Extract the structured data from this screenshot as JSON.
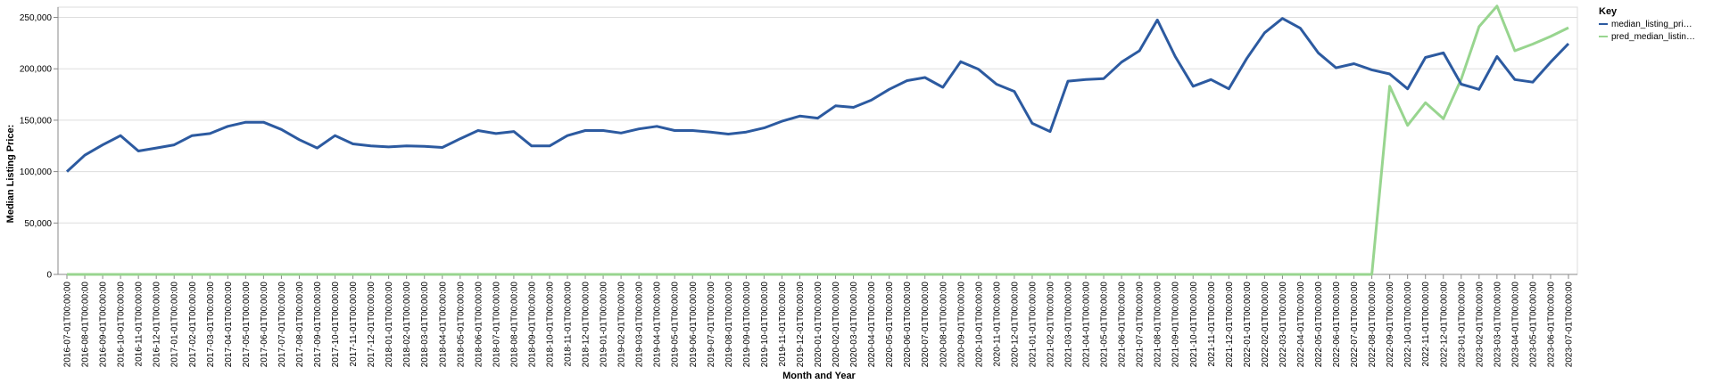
{
  "chart_data": {
    "type": "line",
    "xlabel": "Month and Year",
    "ylabel": "Median Listing Price:",
    "ylim": [
      0,
      260000
    ],
    "y_ticks": [
      0,
      50000,
      100000,
      150000,
      200000,
      250000
    ],
    "y_tick_labels": [
      "0",
      "50,000",
      "100,000",
      "150,000",
      "200,000",
      "250,000"
    ],
    "grid": true,
    "legend": {
      "title": "Key",
      "placement": "top-right",
      "entries": [
        "median_listing_pri…",
        "pred_median_listin…"
      ]
    },
    "categories": [
      "2016-07-01T00:00:00",
      "2016-08-01T00:00:00",
      "2016-09-01T00:00:00",
      "2016-10-01T00:00:00",
      "2016-11-01T00:00:00",
      "2016-12-01T00:00:00",
      "2017-01-01T00:00:00",
      "2017-02-01T00:00:00",
      "2017-03-01T00:00:00",
      "2017-04-01T00:00:00",
      "2017-05-01T00:00:00",
      "2017-06-01T00:00:00",
      "2017-07-01T00:00:00",
      "2017-08-01T00:00:00",
      "2017-09-01T00:00:00",
      "2017-10-01T00:00:00",
      "2017-11-01T00:00:00",
      "2017-12-01T00:00:00",
      "2018-01-01T00:00:00",
      "2018-02-01T00:00:00",
      "2018-03-01T00:00:00",
      "2018-04-01T00:00:00",
      "2018-05-01T00:00:00",
      "2018-06-01T00:00:00",
      "2018-07-01T00:00:00",
      "2018-08-01T00:00:00",
      "2018-09-01T00:00:00",
      "2018-10-01T00:00:00",
      "2018-11-01T00:00:00",
      "2018-12-01T00:00:00",
      "2019-01-01T00:00:00",
      "2019-02-01T00:00:00",
      "2019-03-01T00:00:00",
      "2019-04-01T00:00:00",
      "2019-05-01T00:00:00",
      "2019-06-01T00:00:00",
      "2019-07-01T00:00:00",
      "2019-08-01T00:00:00",
      "2019-09-01T00:00:00",
      "2019-10-01T00:00:00",
      "2019-11-01T00:00:00",
      "2019-12-01T00:00:00",
      "2020-01-01T00:00:00",
      "2020-02-01T00:00:00",
      "2020-03-01T00:00:00",
      "2020-04-01T00:00:00",
      "2020-05-01T00:00:00",
      "2020-06-01T00:00:00",
      "2020-07-01T00:00:00",
      "2020-08-01T00:00:00",
      "2020-09-01T00:00:00",
      "2020-10-01T00:00:00",
      "2020-11-01T00:00:00",
      "2020-12-01T00:00:00",
      "2021-01-01T00:00:00",
      "2021-02-01T00:00:00",
      "2021-03-01T00:00:00",
      "2021-04-01T00:00:00",
      "2021-05-01T00:00:00",
      "2021-06-01T00:00:00",
      "2021-07-01T00:00:00",
      "2021-08-01T00:00:00",
      "2021-09-01T00:00:00",
      "2021-10-01T00:00:00",
      "2021-11-01T00:00:00",
      "2021-12-01T00:00:00",
      "2022-01-01T00:00:00",
      "2022-02-01T00:00:00",
      "2022-03-01T00:00:00",
      "2022-04-01T00:00:00",
      "2022-05-01T00:00:00",
      "2022-06-01T00:00:00",
      "2022-07-01T00:00:00",
      "2022-08-01T00:00:00",
      "2022-09-01T00:00:00",
      "2022-10-01T00:00:00",
      "2022-11-01T00:00:00",
      "2022-12-01T00:00:00",
      "2023-01-01T00:00:00",
      "2023-02-01T00:00:00",
      "2023-03-01T00:00:00",
      "2023-04-01T00:00:00",
      "2023-05-01T00:00:00",
      "2023-06-01T00:00:00",
      "2023-07-01T00:00:00"
    ],
    "series": [
      {
        "name": "median_listing_pri…",
        "color": "#2c5aa0",
        "values": [
          100000,
          116000,
          126000,
          135000,
          120000,
          123000,
          126000,
          135000,
          137000,
          144000,
          148000,
          148000,
          141000,
          131000,
          123000,
          135000,
          127000,
          125000,
          124000,
          125000,
          124500,
          123500,
          132000,
          140000,
          137000,
          139000,
          125000,
          125000,
          135000,
          140000,
          140000,
          137500,
          141500,
          144000,
          140000,
          140000,
          138500,
          136500,
          138500,
          142500,
          149000,
          154000,
          152000,
          164000,
          162500,
          169500,
          180000,
          188500,
          191500,
          182000,
          207000,
          199500,
          185000,
          178000,
          147000,
          139000,
          188000,
          189500,
          190500,
          206500,
          217500,
          247500,
          212000,
          183000,
          189500,
          180500,
          210000,
          235000,
          249000,
          239500,
          215500,
          201000,
          205000,
          199000,
          195000,
          180500,
          211000,
          215500,
          185000,
          180000,
          212000,
          189500,
          187000,
          206500,
          224500
        ]
      },
      {
        "name": "pred_median_listin…",
        "color": "#98d58f",
        "values": [
          0,
          0,
          0,
          0,
          0,
          0,
          0,
          0,
          0,
          0,
          0,
          0,
          0,
          0,
          0,
          0,
          0,
          0,
          0,
          0,
          0,
          0,
          0,
          0,
          0,
          0,
          0,
          0,
          0,
          0,
          0,
          0,
          0,
          0,
          0,
          0,
          0,
          0,
          0,
          0,
          0,
          0,
          0,
          0,
          0,
          0,
          0,
          0,
          0,
          0,
          0,
          0,
          0,
          0,
          0,
          0,
          0,
          0,
          0,
          0,
          0,
          0,
          0,
          0,
          0,
          0,
          0,
          0,
          0,
          0,
          0,
          0,
          0,
          0,
          183000,
          145000,
          167000,
          151500,
          190000,
          241000,
          261000,
          217500,
          224000,
          231500,
          240000
        ]
      }
    ]
  }
}
